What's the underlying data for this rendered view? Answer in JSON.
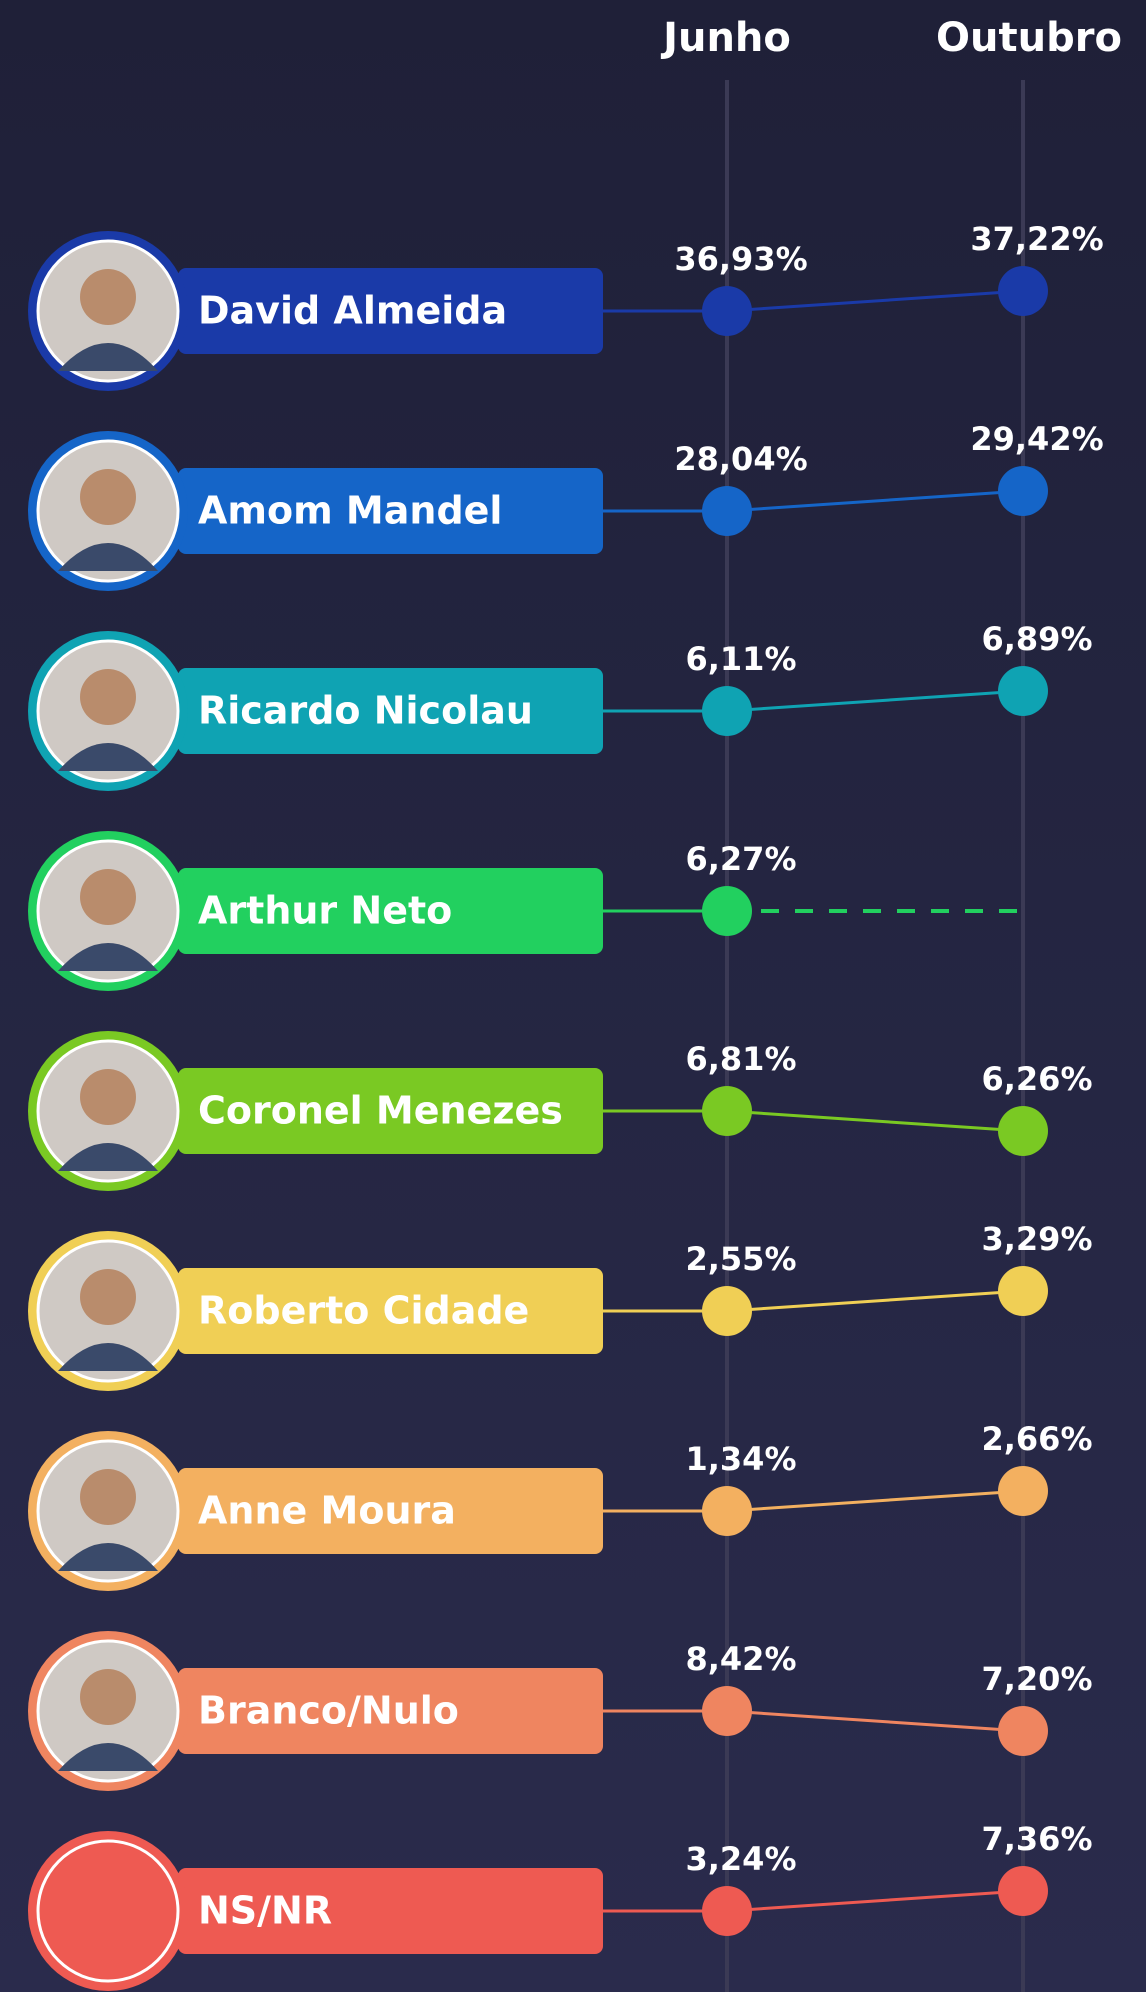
{
  "chart_data": {
    "type": "slope",
    "categories": [
      "David Almeida",
      "Amom Mandel",
      "Ricardo Nicolau",
      "Arthur Neto",
      "Coronel Menezes",
      "Roberto Cidade",
      "Anne Moura",
      "Branco/Nulo",
      "NS/NR"
    ],
    "colors": [
      "#1a3aa8",
      "#1565c8",
      "#0fa3b3",
      "#22d05f",
      "#7ac923",
      "#f0cf55",
      "#f3b060",
      "#ef8560",
      "#ee5a52"
    ],
    "series": [
      {
        "name": "Junho",
        "values": [
          36.93,
          28.04,
          6.11,
          6.27,
          6.81,
          2.55,
          1.34,
          8.42,
          3.24
        ],
        "value_labels": [
          "36,93%",
          "28,04%",
          "6,11%",
          "6,27%",
          "6,81%",
          "2,55%",
          "1,34%",
          "8,42%",
          "3,24%"
        ]
      },
      {
        "name": "Outubro",
        "values": [
          37.22,
          29.42,
          6.89,
          null,
          6.26,
          3.29,
          2.66,
          7.2,
          7.36
        ],
        "value_labels": [
          "37,22%",
          "29,42%",
          "6,89%",
          null,
          "6,26%",
          "3,29%",
          "2,66%",
          "7,20%",
          "7,36%"
        ]
      }
    ]
  }
}
